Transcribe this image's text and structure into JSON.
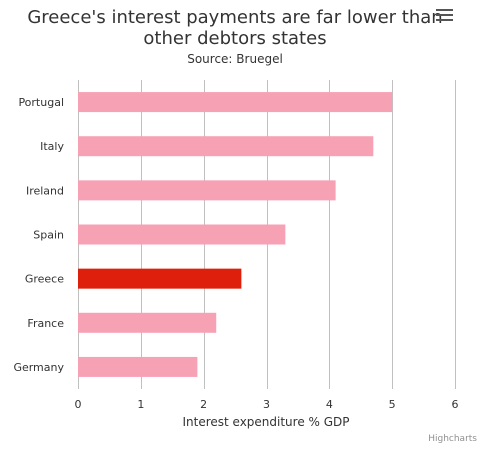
{
  "chart_data": {
    "type": "bar",
    "orientation": "horizontal",
    "title": "Greece's interest payments are far lower than other debtors states",
    "title_lines": [
      "Greece's interest payments are far lower than",
      "other debtors states"
    ],
    "subtitle": "Source: Bruegel",
    "categories": [
      "Portugal",
      "Italy",
      "Ireland",
      "Spain",
      "Greece",
      "France",
      "Germany"
    ],
    "values": [
      5.0,
      4.7,
      4.1,
      3.3,
      2.6,
      2.2,
      1.9
    ],
    "highlight": "Greece",
    "xlabel": "Interest expenditure % GDP",
    "ylabel": "",
    "xlim": [
      0,
      6
    ],
    "xticks": [
      "0",
      "1",
      "2",
      "3",
      "4",
      "5",
      "6"
    ],
    "grid": true,
    "legend": "none"
  },
  "colors": {
    "bar": "#f7a1b5",
    "highlight": "#dd1f0b",
    "grid": "#c0c0c0"
  },
  "credits": "Highcharts",
  "menu_icon": "hamburger-menu-icon"
}
